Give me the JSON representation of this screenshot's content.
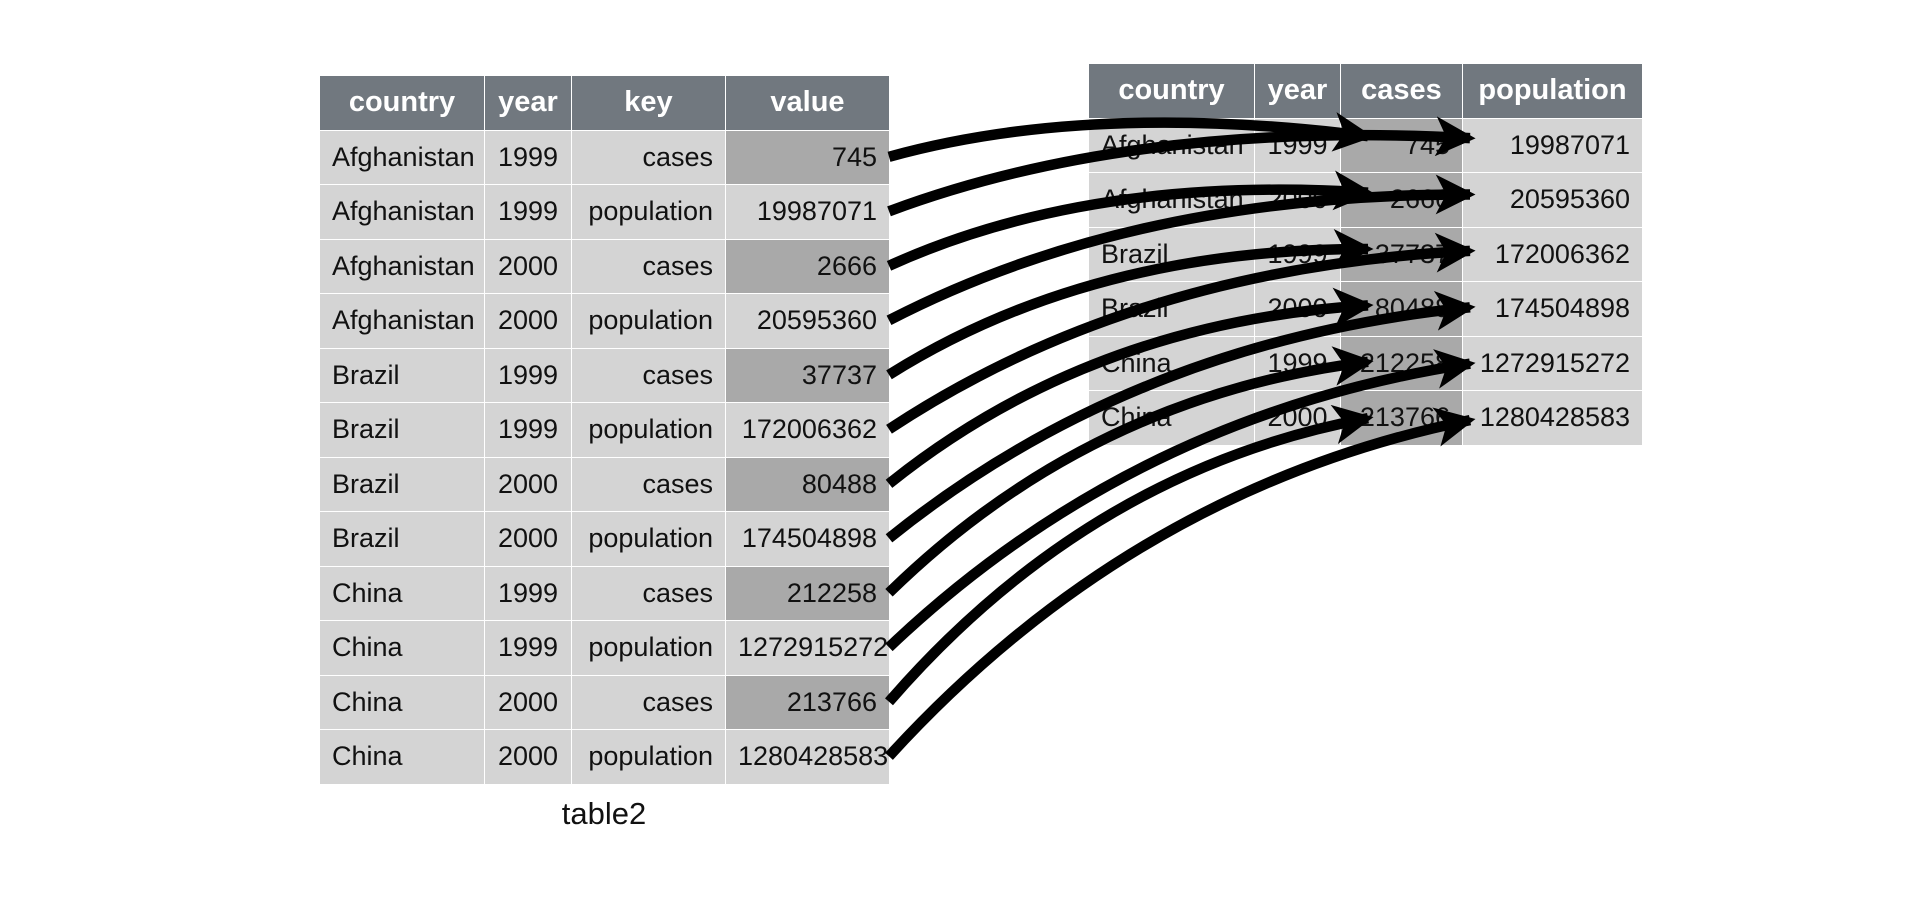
{
  "caption": "table2",
  "colors": {
    "header_bg": "#71787f",
    "header_text": "#ffffff",
    "cell_bg": "#d4d4d4",
    "highlight_bg": "#a9a9a9",
    "arrow": "#000000",
    "body_text": "#111111",
    "background": "#ffffff"
  },
  "left_table": {
    "caption": "table2",
    "headers": [
      "country",
      "year",
      "key",
      "value"
    ],
    "rows": [
      {
        "country": "Afghanistan",
        "year": "1999",
        "key": "cases",
        "value": "745",
        "highlight": true
      },
      {
        "country": "Afghanistan",
        "year": "1999",
        "key": "population",
        "value": "19987071",
        "highlight": false
      },
      {
        "country": "Afghanistan",
        "year": "2000",
        "key": "cases",
        "value": "2666",
        "highlight": true
      },
      {
        "country": "Afghanistan",
        "year": "2000",
        "key": "population",
        "value": "20595360",
        "highlight": false
      },
      {
        "country": "Brazil",
        "year": "1999",
        "key": "cases",
        "value": "37737",
        "highlight": true
      },
      {
        "country": "Brazil",
        "year": "1999",
        "key": "population",
        "value": "172006362",
        "highlight": false
      },
      {
        "country": "Brazil",
        "year": "2000",
        "key": "cases",
        "value": "80488",
        "highlight": true
      },
      {
        "country": "Brazil",
        "year": "2000",
        "key": "population",
        "value": "174504898",
        "highlight": false
      },
      {
        "country": "China",
        "year": "1999",
        "key": "cases",
        "value": "212258",
        "highlight": true
      },
      {
        "country": "China",
        "year": "1999",
        "key": "population",
        "value": "1272915272",
        "highlight": false
      },
      {
        "country": "China",
        "year": "2000",
        "key": "cases",
        "value": "213766",
        "highlight": true
      },
      {
        "country": "China",
        "year": "2000",
        "key": "population",
        "value": "1280428583",
        "highlight": false
      }
    ]
  },
  "right_table": {
    "headers": [
      "country",
      "year",
      "cases",
      "population"
    ],
    "rows": [
      {
        "country": "Afghanistan",
        "year": "1999",
        "cases": "745",
        "population": "19987071"
      },
      {
        "country": "Afghanistan",
        "year": "2000",
        "cases": "2666",
        "population": "20595360"
      },
      {
        "country": "Brazil",
        "year": "1999",
        "cases": "37737",
        "population": "172006362"
      },
      {
        "country": "Brazil",
        "year": "2000",
        "cases": "80488",
        "population": "174504898"
      },
      {
        "country": "China",
        "year": "1999",
        "cases": "212258",
        "population": "1272915272"
      },
      {
        "country": "China",
        "year": "2000",
        "cases": "213766",
        "population": "1280428583"
      }
    ]
  },
  "arrows": [
    {
      "from_row": 0,
      "to_row": 0,
      "to_col": "cases"
    },
    {
      "from_row": 1,
      "to_row": 0,
      "to_col": "population"
    },
    {
      "from_row": 2,
      "to_row": 1,
      "to_col": "cases"
    },
    {
      "from_row": 3,
      "to_row": 1,
      "to_col": "population"
    },
    {
      "from_row": 4,
      "to_row": 2,
      "to_col": "cases"
    },
    {
      "from_row": 5,
      "to_row": 2,
      "to_col": "population"
    },
    {
      "from_row": 6,
      "to_row": 3,
      "to_col": "cases"
    },
    {
      "from_row": 7,
      "to_row": 3,
      "to_col": "population"
    },
    {
      "from_row": 8,
      "to_row": 4,
      "to_col": "cases"
    },
    {
      "from_row": 9,
      "to_row": 4,
      "to_col": "population"
    },
    {
      "from_row": 10,
      "to_row": 5,
      "to_col": "cases"
    },
    {
      "from_row": 11,
      "to_row": 5,
      "to_col": "population"
    }
  ]
}
